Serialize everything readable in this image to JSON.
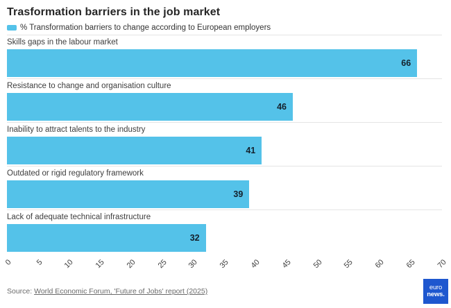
{
  "header": {
    "title": "Trasformation barriers in the job market",
    "legend_label": "% Transformation barriers to change according to European employers"
  },
  "chart_data": {
    "type": "bar",
    "orientation": "horizontal",
    "title": "Trasformation barriers in the job market",
    "legend": "% Transformation barriers to change according to European employers",
    "categories": [
      "Skills gaps in the labour market",
      "Resistance to change and organisation culture",
      "Inability to attract talents to the industry",
      "Outdated or rigid regulatory framework",
      "Lack of adequate technical infrastructure"
    ],
    "values": [
      66,
      46,
      41,
      39,
      32
    ],
    "xlim": [
      0,
      70
    ],
    "ticks": [
      0,
      5,
      10,
      15,
      20,
      25,
      30,
      35,
      40,
      45,
      50,
      55,
      60,
      65,
      70
    ],
    "tick_rotation_deg": -45,
    "bar_color": "#54c2e9",
    "value_label_color": "#14202b",
    "row_separator_color": "#e4e4e4",
    "grid": "off",
    "legend_position": "top-left",
    "value_labels": "inside-right"
  },
  "footer": {
    "source_prefix": "Source: ",
    "source_link": "World Economic Forum, 'Future of Jobs' report (2025)",
    "logo_line1": "euro",
    "logo_line2": "news.",
    "logo_color": "#1e57cf"
  }
}
